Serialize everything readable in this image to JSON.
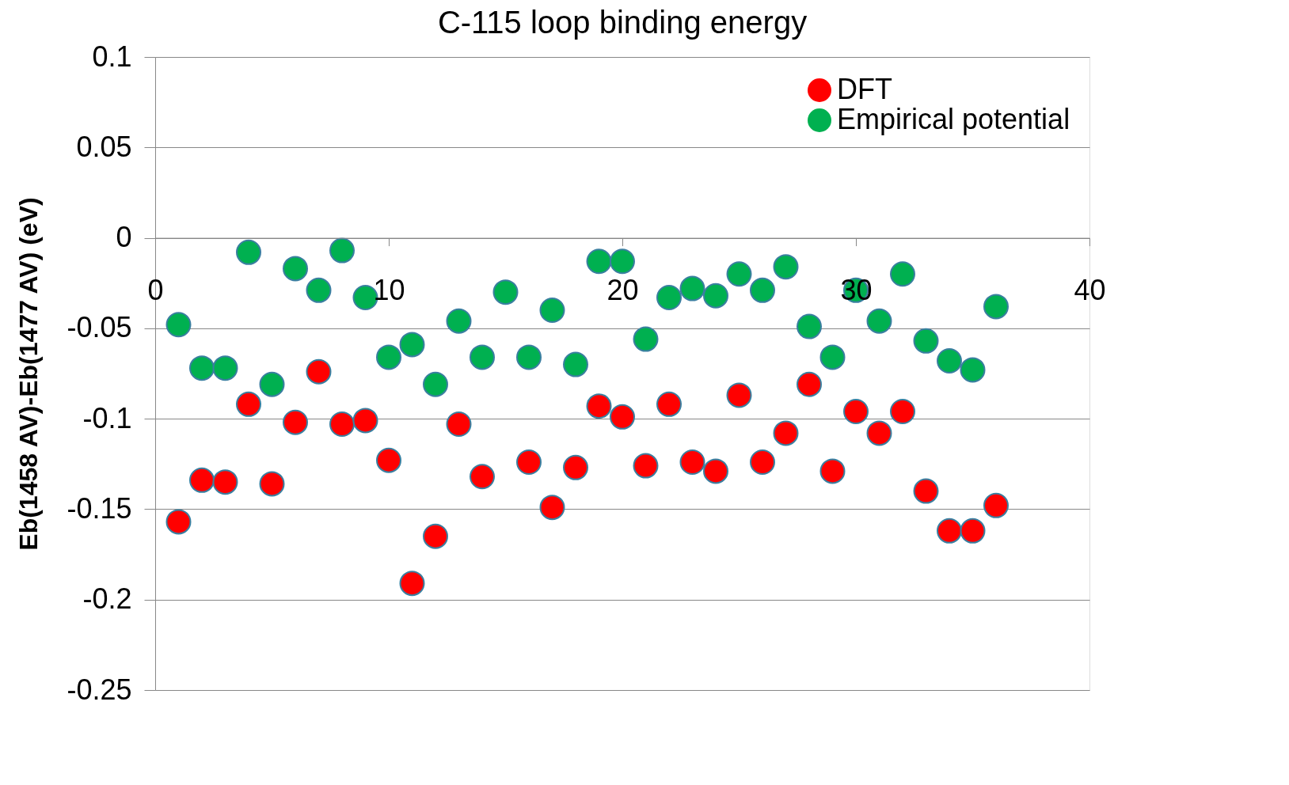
{
  "chart_data": {
    "type": "scatter",
    "title": "C-115 loop binding energy",
    "ylabel": "Eb(1458 AV)-Eb(1477 AV) (eV)",
    "x": [
      1,
      2,
      3,
      4,
      5,
      6,
      7,
      8,
      9,
      10,
      11,
      12,
      13,
      14,
      15,
      16,
      17,
      18,
      19,
      20,
      21,
      22,
      23,
      24,
      25,
      26,
      27,
      28,
      29,
      30,
      31,
      32,
      33,
      34,
      35,
      36
    ],
    "series": [
      {
        "name": "DFT",
        "color": "#ff0000",
        "values": [
          -0.157,
          -0.134,
          -0.135,
          -0.092,
          -0.136,
          -0.102,
          -0.074,
          -0.103,
          -0.101,
          -0.123,
          -0.191,
          -0.165,
          -0.103,
          -0.132,
          null,
          -0.124,
          -0.149,
          -0.127,
          -0.093,
          -0.099,
          -0.126,
          -0.092,
          -0.124,
          -0.129,
          -0.087,
          -0.124,
          -0.108,
          -0.081,
          -0.129,
          -0.096,
          -0.108,
          -0.096,
          -0.14,
          -0.162,
          -0.162,
          -0.148
        ]
      },
      {
        "name": "Empirical potential",
        "color": "#00b050",
        "values": [
          -0.048,
          -0.072,
          -0.072,
          -0.008,
          -0.081,
          -0.017,
          -0.029,
          -0.007,
          -0.033,
          -0.066,
          -0.059,
          -0.081,
          -0.046,
          -0.066,
          -0.03,
          -0.066,
          -0.04,
          -0.07,
          -0.013,
          -0.013,
          -0.056,
          -0.033,
          -0.028,
          -0.032,
          -0.02,
          -0.029,
          -0.016,
          -0.049,
          -0.066,
          -0.029,
          -0.046,
          -0.02,
          -0.057,
          -0.068,
          -0.073,
          -0.038
        ]
      }
    ],
    "xlim": [
      0,
      40
    ],
    "xticks": [
      0,
      10,
      20,
      30,
      40
    ],
    "ylim": [
      -0.25,
      0.1
    ],
    "yticks": [
      -0.25,
      -0.2,
      -0.15,
      -0.1,
      -0.05,
      0,
      0.05,
      0.1
    ],
    "grid": "y",
    "legend": "top right",
    "marker": "circle"
  }
}
